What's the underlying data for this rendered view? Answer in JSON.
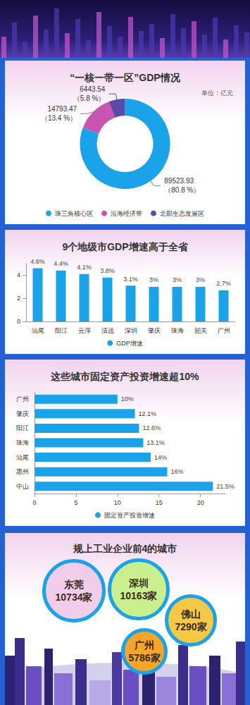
{
  "chart_data": [
    {
      "type": "pie",
      "title": "“一核一带一区”GDP情况",
      "subtitle": "单位：亿元",
      "categories": [
        "珠三角核心区",
        "沿海经济带",
        "北部生态发展区"
      ],
      "values": [
        89523.93,
        14793.47,
        6443.54
      ],
      "value_labels": [
        "89523.93\n（80.8 %）",
        "14793.47\n（13.4 %）",
        "6443.54\n（5.8 %）"
      ],
      "colors": [
        "#1aa3e8",
        "#c955b1",
        "#5b4aa6"
      ],
      "data_labels": true,
      "legend": "bottom"
    },
    {
      "type": "bar",
      "title": "9个地级市GDP增速高于全省",
      "categories": [
        "汕尾",
        "阳江",
        "云浮",
        "清远",
        "深圳",
        "肇庆",
        "珠海",
        "韶关",
        "广州"
      ],
      "series": [
        {
          "name": "GDP增速",
          "color": "#1aa3e8",
          "values": [
            4.6,
            4.4,
            4.1,
            3.8,
            3.1,
            3,
            3,
            3,
            2.7
          ],
          "value_labels": [
            "4.6%",
            "4.4%",
            "4.1%",
            "3.8%",
            "3.1%",
            "3%",
            "3%",
            "3%",
            "2.7%"
          ]
        }
      ],
      "ylim": [
        0,
        5
      ],
      "yticks": [
        0,
        2,
        4
      ],
      "grid": false,
      "data_labels": true,
      "legend": "bottom"
    },
    {
      "type": "bar",
      "title": "这些城市固定资产投资增速超10%",
      "orientation": "horizontal",
      "categories": [
        "广州",
        "肇庆",
        "阳江",
        "珠海",
        "汕尾",
        "惠州",
        "中山"
      ],
      "series": [
        {
          "name": "固定资产投资增速",
          "color": "#1aa3e8",
          "values": [
            10,
            12.1,
            12.6,
            13.1,
            14,
            16,
            21.5
          ],
          "value_labels": [
            "10%",
            "12.1%",
            "12.6%",
            "13.1%",
            "14%",
            "16%",
            "21.5%"
          ]
        }
      ],
      "xlim": [
        0,
        23
      ],
      "xticks": [
        0,
        5,
        10,
        15,
        20
      ],
      "grid": false,
      "data_labels": true,
      "legend": "bottom"
    },
    {
      "type": "bubble",
      "title": "规上工业企业前4的城市",
      "categories": [
        "东莞",
        "深圳",
        "佛山",
        "广州"
      ],
      "values": [
        10734,
        10163,
        7290,
        5786
      ],
      "value_labels": [
        "10734家",
        "10163家",
        "7290家",
        "5786家"
      ],
      "colors": [
        "#f2cdea",
        "#c9f08c",
        "#f5c945",
        "#f5a52a"
      ],
      "data_labels": true
    }
  ]
}
